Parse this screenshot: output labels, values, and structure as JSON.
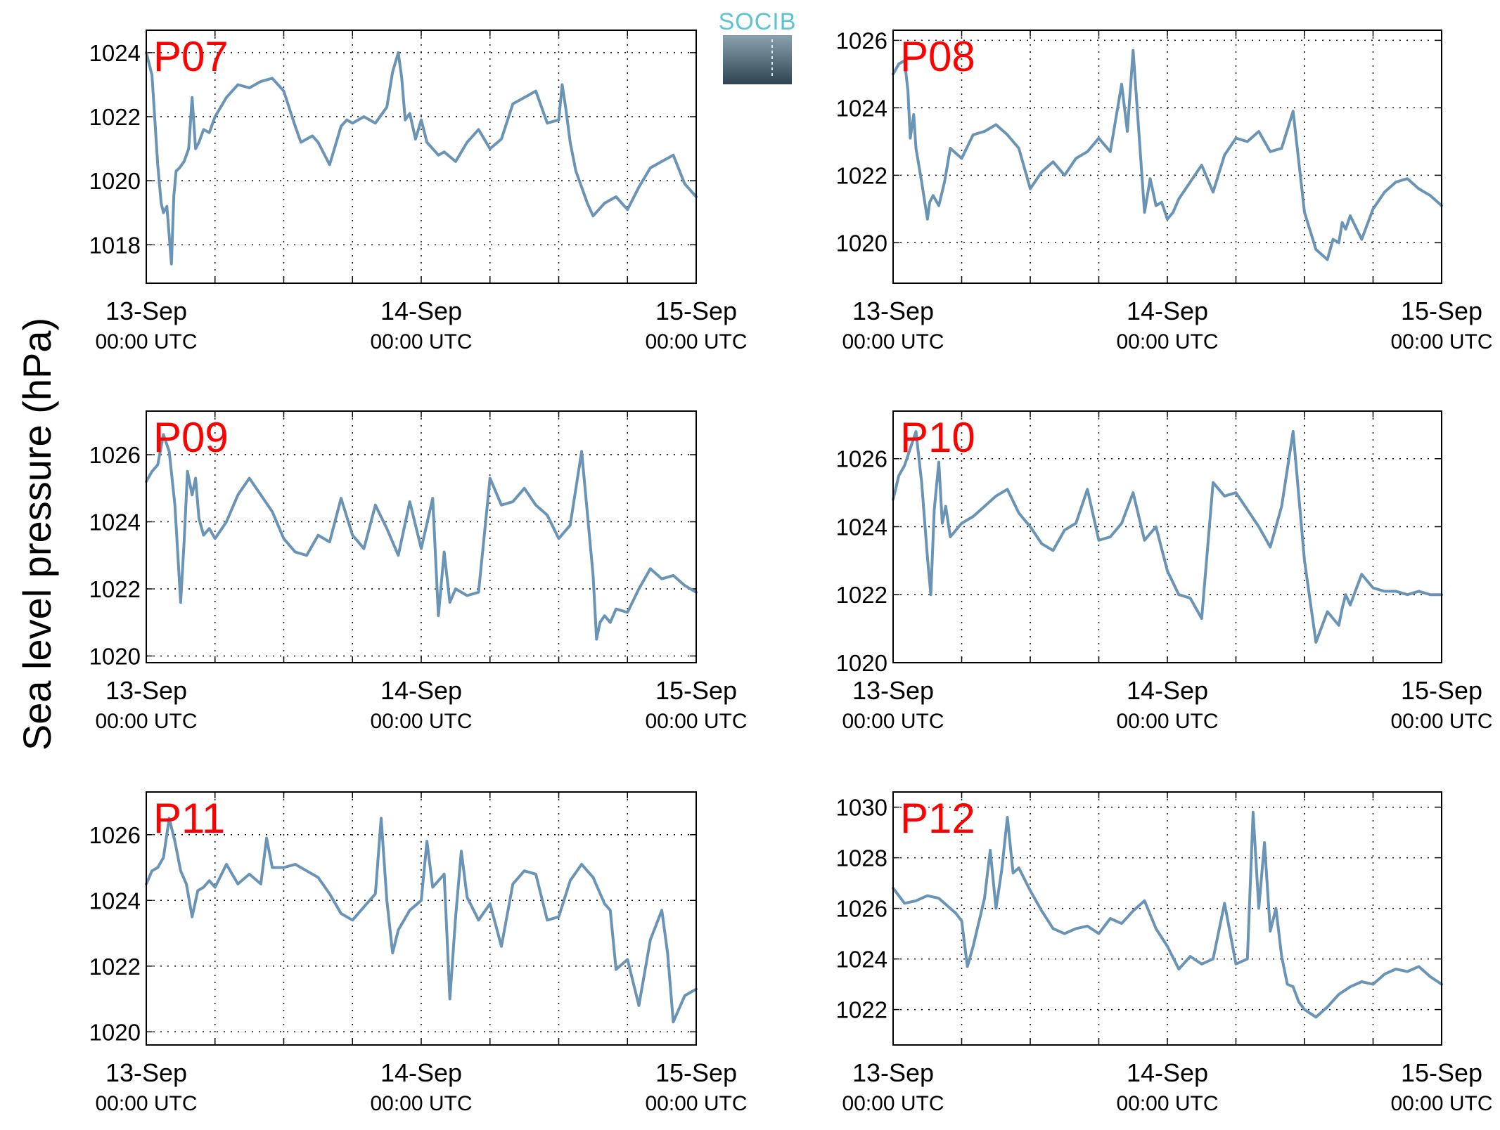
{
  "figure": {
    "ylabel": "Sea level pressure (hPa)",
    "logo_text": "SOCIB",
    "line_color": "#6a94b6",
    "label_color": "#ff0000"
  },
  "chart_data": [
    {
      "type": "line",
      "label": "P07",
      "ylim": [
        1016.8,
        1024.7
      ],
      "yticks": [
        1018,
        1020,
        1022,
        1024
      ],
      "xlim": [
        0,
        48
      ],
      "grid": true,
      "x_ticks": [
        {
          "x": 0,
          "day": "13-Sep",
          "time": "00:00 UTC"
        },
        {
          "x": 24,
          "day": "14-Sep",
          "time": "00:00 UTC"
        },
        {
          "x": 48,
          "day": "15-Sep",
          "time": "00:00 UTC"
        }
      ],
      "x_hours": [
        0,
        0.5,
        1,
        1.3,
        1.5,
        1.8,
        2.2,
        2.4,
        2.6,
        2.9,
        3.3,
        3.7,
        4,
        4.3,
        4.6,
        5,
        5.5,
        6,
        7,
        8,
        9,
        10,
        11,
        12,
        13,
        13.5,
        14,
        14.5,
        15,
        16,
        17,
        17.5,
        18,
        19,
        20,
        21,
        21.5,
        22,
        22.3,
        22.6,
        23,
        23.5,
        24,
        24.5,
        25,
        25.5,
        26,
        27,
        28,
        29,
        30,
        31,
        32,
        33,
        34,
        35,
        36,
        36.3,
        36.6,
        37,
        37.5,
        38,
        38.5,
        39,
        40,
        41,
        42,
        43,
        44,
        45,
        46,
        47,
        48
      ],
      "values": [
        1024,
        1023.3,
        1020.5,
        1019.3,
        1019,
        1019.2,
        1017.4,
        1019.5,
        1020.3,
        1020.4,
        1020.6,
        1021,
        1022.6,
        1021,
        1021.2,
        1021.6,
        1021.5,
        1022,
        1022.6,
        1023,
        1022.9,
        1023.1,
        1023.2,
        1022.8,
        1021.7,
        1021.2,
        1021.3,
        1021.4,
        1021.2,
        1020.5,
        1021.7,
        1021.9,
        1021.8,
        1022,
        1021.8,
        1022.3,
        1023.4,
        1024,
        1023.2,
        1021.9,
        1022.1,
        1021.3,
        1021.9,
        1021.2,
        1021.0,
        1020.8,
        1020.9,
        1020.6,
        1021.2,
        1021.6,
        1021.0,
        1021.3,
        1022.4,
        1022.6,
        1022.8,
        1021.8,
        1021.9,
        1023,
        1022.3,
        1021.2,
        1020.3,
        1019.8,
        1019.3,
        1018.9,
        1019.3,
        1019.5,
        1019.1,
        1019.8,
        1020.4,
        1020.6,
        1020.8,
        1019.9,
        1019.5
      ]
    },
    {
      "type": "line",
      "label": "P08",
      "ylim": [
        1018.8,
        1026.3
      ],
      "yticks": [
        1020,
        1022,
        1024,
        1026
      ],
      "xlim": [
        0,
        48
      ],
      "grid": true,
      "x_ticks": [
        {
          "x": 0,
          "day": "13-Sep",
          "time": "00:00 UTC"
        },
        {
          "x": 24,
          "day": "14-Sep",
          "time": "00:00 UTC"
        },
        {
          "x": 48,
          "day": "15-Sep",
          "time": "00:00 UTC"
        }
      ],
      "x_hours": [
        0,
        0.5,
        1,
        1.3,
        1.5,
        1.8,
        2,
        2.5,
        3,
        3.2,
        3.5,
        4,
        4.5,
        5,
        6,
        7,
        8,
        9,
        10,
        11,
        12,
        13,
        14,
        15,
        16,
        17,
        18,
        19,
        20,
        20.5,
        21,
        22,
        22.5,
        23,
        23.5,
        24,
        24.5,
        25,
        26,
        27,
        28,
        29,
        30,
        31,
        32,
        33,
        34,
        35,
        36,
        37,
        38,
        38.5,
        39,
        39.3,
        39.6,
        40,
        41,
        42,
        43,
        44,
        45,
        46,
        47,
        48
      ],
      "values": [
        1025,
        1025.3,
        1025.4,
        1024.5,
        1023.1,
        1023.8,
        1022.8,
        1021.8,
        1020.7,
        1021.2,
        1021.4,
        1021.1,
        1021.8,
        1022.8,
        1022.5,
        1023.2,
        1023.3,
        1023.5,
        1023.2,
        1022.8,
        1021.6,
        1022.1,
        1022.4,
        1022.0,
        1022.5,
        1022.7,
        1023.1,
        1022.7,
        1024.7,
        1023.3,
        1025.7,
        1020.9,
        1021.9,
        1021.1,
        1021.2,
        1020.7,
        1020.9,
        1021.3,
        1021.8,
        1022.3,
        1021.5,
        1022.6,
        1023.1,
        1023.0,
        1023.3,
        1022.7,
        1022.8,
        1023.9,
        1020.9,
        1019.8,
        1019.5,
        1020.1,
        1020.0,
        1020.6,
        1020.4,
        1020.8,
        1020.1,
        1021.0,
        1021.5,
        1021.8,
        1021.9,
        1021.6,
        1021.4,
        1021.1
      ]
    },
    {
      "type": "line",
      "label": "P09",
      "ylim": [
        1019.8,
        1027.3
      ],
      "yticks": [
        1020,
        1022,
        1024,
        1026
      ],
      "xlim": [
        0,
        48
      ],
      "grid": true,
      "x_ticks": [
        {
          "x": 0,
          "day": "13-Sep",
          "time": "00:00 UTC"
        },
        {
          "x": 24,
          "day": "14-Sep",
          "time": "00:00 UTC"
        },
        {
          "x": 48,
          "day": "15-Sep",
          "time": "00:00 UTC"
        }
      ],
      "x_hours": [
        0,
        0.5,
        1,
        1.5,
        2,
        2.5,
        3,
        3.3,
        3.6,
        4,
        4.3,
        4.6,
        5,
        5.5,
        6,
        7,
        8,
        9,
        10,
        11,
        12,
        13,
        14,
        15,
        16,
        17,
        18,
        19,
        20,
        21,
        22,
        23,
        24,
        25,
        25.5,
        26,
        26.5,
        27,
        28,
        29,
        30,
        31,
        32,
        33,
        34,
        35,
        36,
        37,
        38,
        39,
        39.3,
        39.6,
        40,
        40.5,
        41,
        42,
        43,
        44,
        45,
        46,
        47,
        48
      ],
      "values": [
        1025.2,
        1025.5,
        1025.7,
        1026.6,
        1026.1,
        1024.5,
        1021.6,
        1023.4,
        1025.5,
        1024.8,
        1025.3,
        1024.1,
        1023.6,
        1023.8,
        1023.5,
        1024.0,
        1024.8,
        1025.3,
        1024.8,
        1024.3,
        1023.5,
        1023.1,
        1023.0,
        1023.6,
        1023.4,
        1024.7,
        1023.6,
        1023.2,
        1024.5,
        1023.8,
        1023.0,
        1024.6,
        1023.2,
        1024.7,
        1021.2,
        1023.1,
        1021.6,
        1022.0,
        1021.8,
        1021.9,
        1025.3,
        1024.5,
        1024.6,
        1025.0,
        1024.5,
        1024.2,
        1023.5,
        1023.9,
        1026.1,
        1022.4,
        1020.5,
        1021.0,
        1021.2,
        1021.0,
        1021.4,
        1021.3,
        1022.0,
        1022.6,
        1022.3,
        1022.4,
        1022.1,
        1021.9
      ]
    },
    {
      "type": "line",
      "label": "P10",
      "ylim": [
        1020,
        1027.4
      ],
      "yticks": [
        1020,
        1022,
        1024,
        1026
      ],
      "xlim": [
        0,
        48
      ],
      "grid": true,
      "x_ticks": [
        {
          "x": 0,
          "day": "13-Sep",
          "time": "00:00 UTC"
        },
        {
          "x": 24,
          "day": "14-Sep",
          "time": "00:00 UTC"
        },
        {
          "x": 48,
          "day": "15-Sep",
          "time": "00:00 UTC"
        }
      ],
      "x_hours": [
        0,
        0.5,
        1,
        1.5,
        2,
        2.5,
        3,
        3.3,
        3.6,
        4,
        4.3,
        4.6,
        5,
        5.5,
        6,
        7,
        8,
        9,
        10,
        11,
        12,
        13,
        14,
        15,
        16,
        17,
        18,
        19,
        20,
        21,
        22,
        23,
        24,
        25,
        26,
        27,
        28,
        29,
        30,
        31,
        32,
        33,
        34,
        35,
        36,
        37,
        38,
        39,
        39.3,
        39.6,
        40,
        41,
        42,
        43,
        44,
        45,
        46,
        47,
        48
      ],
      "values": [
        1024.8,
        1025.5,
        1025.8,
        1026.3,
        1026.8,
        1025.3,
        1023.1,
        1022.0,
        1024.5,
        1025.9,
        1024.1,
        1024.6,
        1023.7,
        1023.9,
        1024.1,
        1024.3,
        1024.6,
        1024.9,
        1025.1,
        1024.4,
        1024.0,
        1023.5,
        1023.3,
        1023.9,
        1024.1,
        1025.1,
        1023.6,
        1023.7,
        1024.1,
        1025.0,
        1023.6,
        1024.0,
        1022.7,
        1022.0,
        1021.9,
        1021.3,
        1025.3,
        1024.9,
        1025.0,
        1024.5,
        1024.0,
        1023.4,
        1024.6,
        1026.8,
        1023.0,
        1020.6,
        1021.5,
        1021.1,
        1021.6,
        1022.0,
        1021.7,
        1022.6,
        1022.2,
        1022.1,
        1022.1,
        1022.0,
        1022.1,
        1022.0,
        1022.0
      ]
    },
    {
      "type": "line",
      "label": "P11",
      "ylim": [
        1019.6,
        1027.3
      ],
      "yticks": [
        1020,
        1022,
        1024,
        1026
      ],
      "xlim": [
        0,
        48
      ],
      "grid": true,
      "x_ticks": [
        {
          "x": 0,
          "day": "13-Sep",
          "time": "00:00 UTC"
        },
        {
          "x": 24,
          "day": "14-Sep",
          "time": "00:00 UTC"
        },
        {
          "x": 48,
          "day": "15-Sep",
          "time": "00:00 UTC"
        }
      ],
      "x_hours": [
        0,
        0.5,
        1,
        1.5,
        2,
        2.5,
        3,
        3.5,
        4,
        4.5,
        5,
        5.5,
        6,
        7,
        8,
        9,
        10,
        10.5,
        11,
        12,
        13,
        14,
        15,
        16,
        17,
        18,
        19,
        20,
        20.5,
        21,
        21.5,
        22,
        23,
        24,
        24.5,
        25,
        26,
        26.5,
        27,
        27.5,
        28,
        29,
        30,
        31,
        32,
        33,
        34,
        35,
        36,
        37,
        38,
        39,
        40,
        40.5,
        41,
        42,
        43,
        44,
        45,
        45.5,
        46,
        47,
        48
      ],
      "values": [
        1024.5,
        1024.9,
        1025.0,
        1025.3,
        1026.5,
        1025.8,
        1024.9,
        1024.5,
        1023.5,
        1024.3,
        1024.4,
        1024.6,
        1024.4,
        1025.1,
        1024.5,
        1024.8,
        1024.5,
        1025.9,
        1025.0,
        1025.0,
        1025.1,
        1024.9,
        1024.7,
        1024.2,
        1023.6,
        1023.4,
        1023.8,
        1024.2,
        1026.5,
        1024.0,
        1022.4,
        1023.1,
        1023.7,
        1024.0,
        1025.8,
        1024.4,
        1024.8,
        1021.0,
        1023.5,
        1025.5,
        1024.1,
        1023.4,
        1023.9,
        1022.6,
        1024.5,
        1024.9,
        1024.8,
        1023.4,
        1023.5,
        1024.6,
        1025.1,
        1024.7,
        1023.9,
        1023.7,
        1021.9,
        1022.2,
        1020.8,
        1022.8,
        1023.7,
        1022.4,
        1020.3,
        1021.1,
        1021.3
      ]
    },
    {
      "type": "line",
      "label": "P12",
      "ylim": [
        1020.6,
        1030.6
      ],
      "yticks": [
        1022,
        1024,
        1026,
        1028,
        1030
      ],
      "xlim": [
        0,
        48
      ],
      "grid": true,
      "x_ticks": [
        {
          "x": 0,
          "day": "13-Sep",
          "time": "00:00 UTC"
        },
        {
          "x": 24,
          "day": "14-Sep",
          "time": "00:00 UTC"
        },
        {
          "x": 48,
          "day": "15-Sep",
          "time": "00:00 UTC"
        }
      ],
      "x_hours": [
        0,
        1,
        2,
        3,
        4,
        5,
        5.5,
        6,
        6.5,
        7,
        8,
        8.5,
        9,
        9.5,
        10,
        10.5,
        11,
        12,
        13,
        14,
        15,
        16,
        17,
        18,
        19,
        20,
        21,
        22,
        23,
        24,
        25,
        26,
        27,
        28,
        29,
        30,
        31,
        31.5,
        32,
        32.5,
        33,
        33.5,
        34,
        34.5,
        35,
        35.5,
        36,
        37,
        38,
        39,
        40,
        41,
        42,
        43,
        44,
        45,
        46,
        47,
        48
      ],
      "values": [
        1026.8,
        1026.2,
        1026.3,
        1026.5,
        1026.4,
        1026.0,
        1025.8,
        1025.5,
        1023.7,
        1024.5,
        1026.4,
        1028.3,
        1026.0,
        1027.5,
        1029.6,
        1027.4,
        1027.6,
        1026.7,
        1025.9,
        1025.2,
        1025.0,
        1025.2,
        1025.3,
        1025.0,
        1025.6,
        1025.4,
        1025.9,
        1026.3,
        1025.2,
        1024.5,
        1023.6,
        1024.1,
        1023.8,
        1024.0,
        1026.2,
        1023.8,
        1024.0,
        1029.8,
        1026.0,
        1028.6,
        1025.1,
        1026.0,
        1024.1,
        1023.0,
        1022.9,
        1022.3,
        1022.0,
        1021.7,
        1022.1,
        1022.6,
        1022.9,
        1023.1,
        1023.0,
        1023.4,
        1023.6,
        1023.5,
        1023.7,
        1023.3,
        1023.0
      ]
    }
  ]
}
